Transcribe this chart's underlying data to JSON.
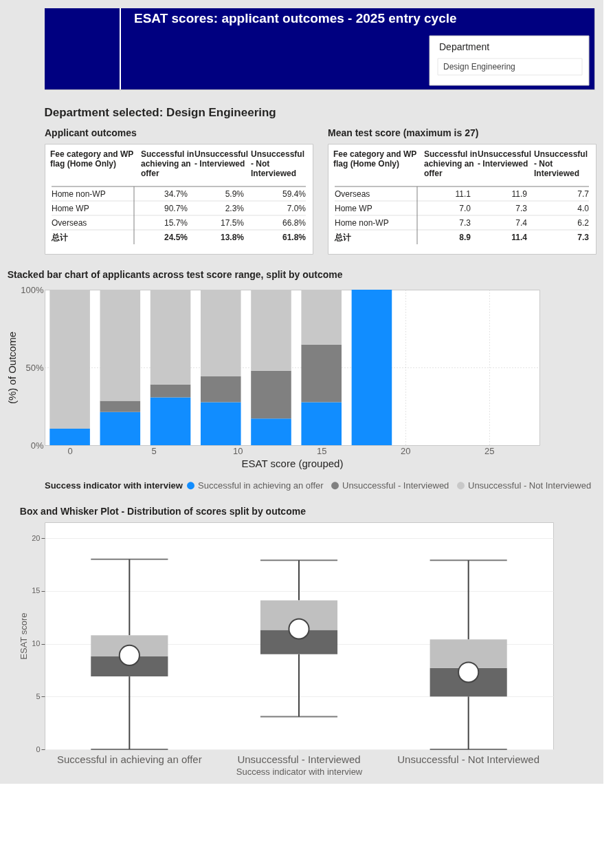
{
  "chart_data": [
    {
      "type": "other",
      "title": "ESAT scores: applicant outcomes - 2025 entry cycle",
      "color": "#000080",
      "annotations": [
        "Department",
        "Design Engineering",
        "Department selected: Design Engineering"
      ]
    },
    {
      "type": "other",
      "title": "Applicant outcomes",
      "ylabel": "Fee category and WP flag (Home Only)",
      "categories": [
        "Successful in achieving an offer",
        "Unsuccessful - Interviewed",
        "Unsuccessful - Not Interviewed"
      ],
      "y_categories": [
        "Home non-WP",
        "Home WP",
        "Overseas",
        "总计"
      ],
      "cell_labels": [
        [
          "34.7%",
          "5.9%",
          "59.4%"
        ],
        [
          "90.7%",
          "2.3%",
          "7.0%"
        ],
        [
          "15.7%",
          "17.5%",
          "66.8%"
        ],
        [
          "24.5%",
          "13.8%",
          "61.8%"
        ]
      ]
    },
    {
      "type": "other",
      "title": "Mean test score (maximum is 27)",
      "ylabel": "Fee category and WP flag (Home Only)",
      "categories": [
        "Successful in achieving an offer",
        "Unsuccessful - Interviewed",
        "Unsuccessful - Not Interviewed"
      ],
      "y_categories": [
        "Overseas",
        "Home WP",
        "Home non-WP",
        "总计"
      ],
      "cell_labels": [
        [
          "11.1",
          "11.9",
          "7.7"
        ],
        [
          "7.0",
          "7.3",
          "4.0"
        ],
        [
          "7.3",
          "7.4",
          "6.2"
        ],
        [
          "8.9",
          "11.4",
          "7.3"
        ]
      ]
    },
    {
      "type": "bar",
      "stacked": true,
      "title": "Stacked bar chart of applicants across test score range, split by outcome",
      "xlabel": "ESAT score (grouped)",
      "ylabel": "(%) of Outcome",
      "legend_title": "Success indicator with interview",
      "legend": "bottom",
      "grid": true,
      "x": [
        0,
        3,
        6,
        9,
        12,
        15,
        18
      ],
      "xlim": [
        -1.5,
        28
      ],
      "xticks": [
        0,
        5,
        10,
        15,
        20,
        25
      ],
      "ylim": [
        0,
        100
      ],
      "yticks": [
        {
          "value": 0,
          "label": "0%"
        },
        {
          "value": 50,
          "label": "50%"
        },
        {
          "value": 100,
          "label": "100%"
        }
      ],
      "series": [
        {
          "name": "Successful in achieving an offer",
          "color": "#118dff",
          "values": [
            10.6,
            21.4,
            30.7,
            27.7,
            17.1,
            27.7,
            100
          ]
        },
        {
          "name": "Unsuccessful - Interviewed",
          "color": "#808080",
          "values": [
            null,
            7.1,
            8.3,
            16.6,
            30.8,
            37.0,
            null
          ]
        },
        {
          "name": "Unsuccessful - Not Interviewed",
          "color": "#c8c8c8",
          "values": [
            89.4,
            71.5,
            61.0,
            55.7,
            52.1,
            35.3,
            null
          ]
        }
      ]
    },
    {
      "type": "box",
      "title": "Box and Whisker Plot - Distribution of scores split by outcome",
      "xlabel": "Success indicator with interview",
      "ylabel": "ESAT score",
      "grid": "y",
      "color": "#666666",
      "categories": [
        "Successful in achieving an offer",
        "Unsuccessful - Interviewed",
        "Unsuccessful - Not Interviewed"
      ],
      "ylim": [
        0,
        21.5
      ],
      "yticks": [
        0,
        5,
        10,
        15,
        20
      ],
      "boxes": [
        {
          "low": 0,
          "q1": 6.9,
          "median": 8.8,
          "q3": 10.8,
          "high": 18.0,
          "mean": 8.9
        },
        {
          "low": 3.1,
          "q1": 9.0,
          "median": 11.3,
          "q3": 14.1,
          "high": 17.9,
          "mean": 11.4
        },
        {
          "low": 0,
          "q1": 5.0,
          "median": 7.7,
          "q3": 10.4,
          "high": 17.9,
          "mean": 7.3
        }
      ]
    }
  ]
}
